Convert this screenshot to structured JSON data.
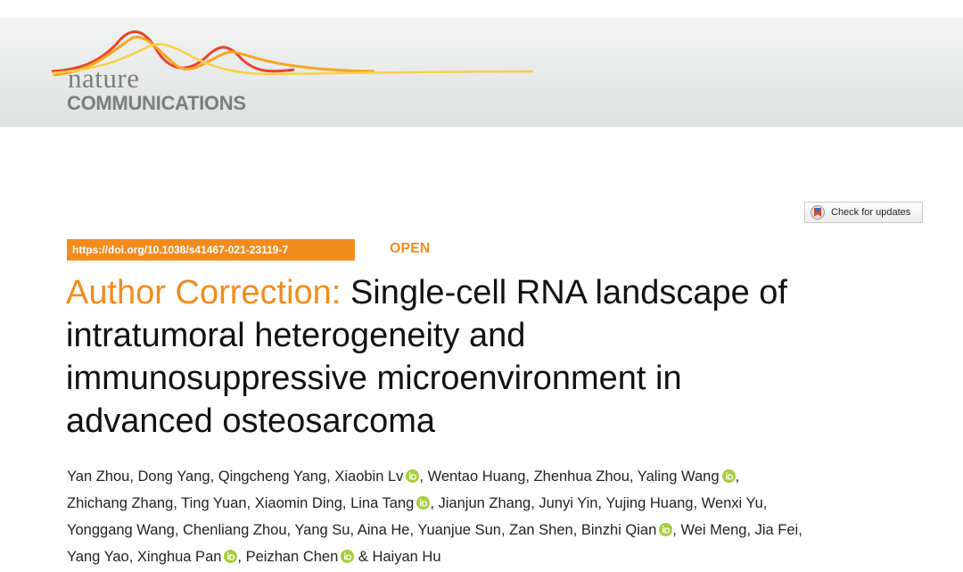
{
  "header": {
    "journal_top": "nature",
    "journal_bottom": "COMMUNICATIONS"
  },
  "check_updates": "Check for updates",
  "doi": "https://doi.org/10.1038/s41467-021-23119-7",
  "access": "OPEN",
  "title": {
    "prefix": "Author Correction:",
    "lines": [
      "Single-cell RNA landscape of",
      "intratumoral heterogeneity and",
      "immunosuppressive microenvironment in",
      "advanced osteosarcoma"
    ]
  },
  "authors": {
    "lines": [
      [
        {
          "name": "Yan Zhou",
          "orcid": false,
          "sep": ","
        },
        {
          "name": "Dong Yang",
          "orcid": false,
          "sep": ","
        },
        {
          "name": "Qingcheng Yang",
          "orcid": false,
          "sep": ","
        },
        {
          "name": "Xiaobin Lv",
          "orcid": true,
          "sep": ","
        },
        {
          "name": "Wentao Huang",
          "orcid": false,
          "sep": ","
        },
        {
          "name": "Zhenhua Zhou",
          "orcid": false,
          "sep": ","
        },
        {
          "name": "Yaling Wang",
          "orcid": true,
          "sep": ","
        }
      ],
      [
        {
          "name": "Zhichang Zhang",
          "orcid": false,
          "sep": ","
        },
        {
          "name": "Ting Yuan",
          "orcid": false,
          "sep": ","
        },
        {
          "name": "Xiaomin Ding",
          "orcid": false,
          "sep": ","
        },
        {
          "name": "Lina Tang",
          "orcid": true,
          "sep": ","
        },
        {
          "name": "Jianjun Zhang",
          "orcid": false,
          "sep": ","
        },
        {
          "name": "Junyi Yin",
          "orcid": false,
          "sep": ","
        },
        {
          "name": "Yujing Huang",
          "orcid": false,
          "sep": ","
        },
        {
          "name": "Wenxi Yu",
          "orcid": false,
          "sep": ","
        }
      ],
      [
        {
          "name": "Yonggang Wang",
          "orcid": false,
          "sep": ","
        },
        {
          "name": "Chenliang Zhou",
          "orcid": false,
          "sep": ","
        },
        {
          "name": "Yang Su",
          "orcid": false,
          "sep": ","
        },
        {
          "name": "Aina He",
          "orcid": false,
          "sep": ","
        },
        {
          "name": "Yuanjue Sun",
          "orcid": false,
          "sep": ","
        },
        {
          "name": "Zan Shen",
          "orcid": false,
          "sep": ","
        },
        {
          "name": "Binzhi Qian",
          "orcid": true,
          "sep": ","
        },
        {
          "name": "Wei Meng",
          "orcid": false,
          "sep": ","
        },
        {
          "name": "Jia Fei",
          "orcid": false,
          "sep": ","
        }
      ],
      [
        {
          "name": "Yang Yao",
          "orcid": false,
          "sep": ","
        },
        {
          "name": "Xinghua Pan",
          "orcid": true,
          "sep": ","
        },
        {
          "name": "Peizhan Chen",
          "orcid": true,
          "sep": " &"
        },
        {
          "name": "Haiyan Hu",
          "orcid": false
        }
      ]
    ]
  }
}
